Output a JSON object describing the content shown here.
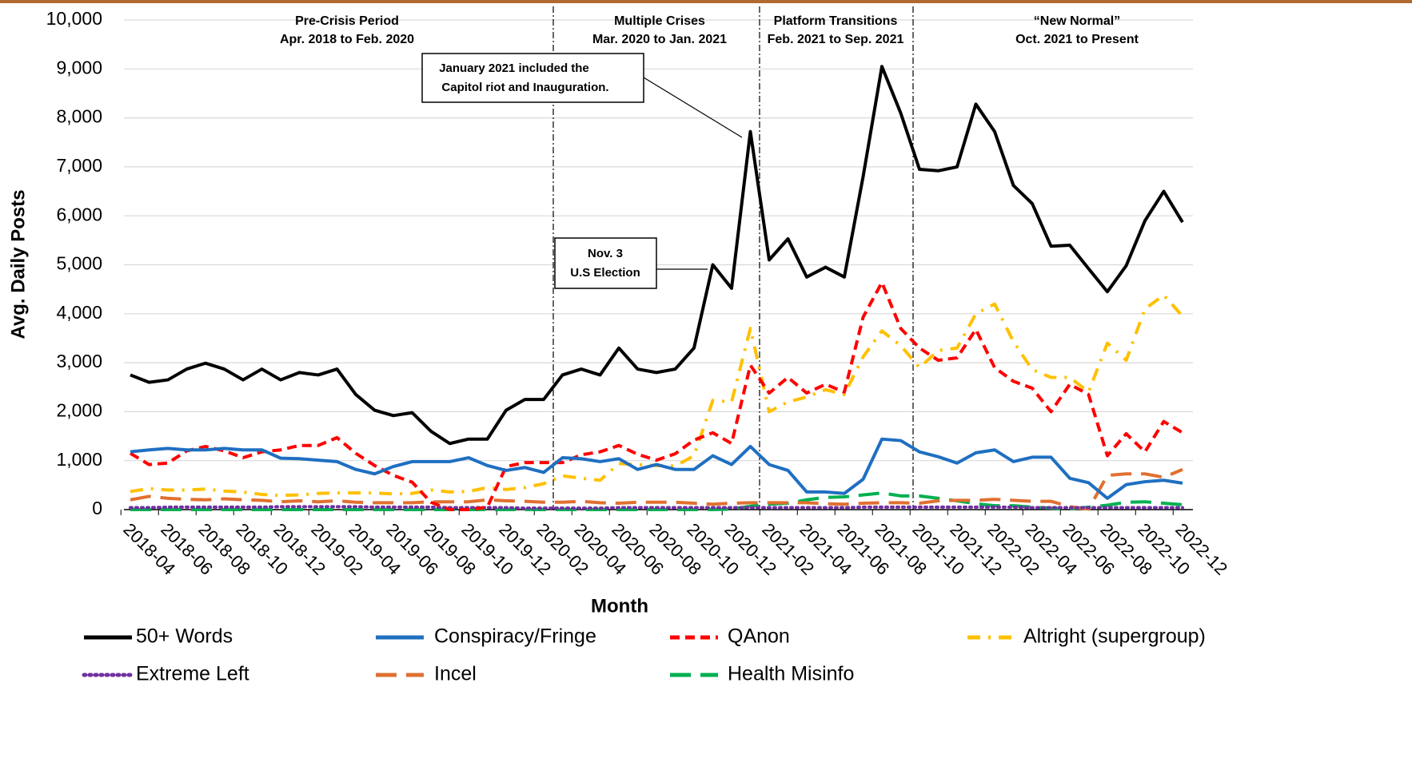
{
  "chart_data": {
    "type": "line",
    "y_label": "Avg. Daily Posts",
    "x_label": "Month",
    "categories": [
      "2018-04",
      null,
      "2018-06",
      null,
      "2018-08",
      null,
      "2018-10",
      null,
      "2018-12",
      null,
      "2019-02",
      null,
      "2019-04",
      null,
      "2019-06",
      null,
      "2019-08",
      null,
      "2019-10",
      null,
      "2019-12",
      null,
      "2020-02",
      null,
      "2020-04",
      null,
      "2020-06",
      null,
      "2020-08",
      null,
      "2020-10",
      null,
      "2020-12",
      null,
      "2021-02",
      null,
      "2021-04",
      null,
      "2021-06",
      null,
      "2021-08",
      null,
      "2021-10",
      null,
      "2021-12",
      null,
      "2022-02",
      null,
      "2022-04",
      null,
      "2022-06",
      null,
      "2022-08",
      null,
      "2022-10",
      null,
      "2022-12"
    ],
    "ylim": [
      0,
      10000
    ],
    "yticks": [
      0,
      {
        "value": 1000,
        "label": "1,000"
      },
      {
        "value": 2000,
        "label": "2,000"
      },
      {
        "value": 3000,
        "label": "3,000"
      },
      {
        "value": 4000,
        "label": "4,000"
      },
      {
        "value": 5000,
        "label": "5,000"
      },
      {
        "value": 6000,
        "label": "6,000"
      },
      {
        "value": 7000,
        "label": "7,000"
      },
      {
        "value": 8000,
        "label": "8,000"
      },
      {
        "value": 9000,
        "label": "9,000"
      },
      {
        "value": 10000,
        "label": "10,000"
      }
    ],
    "grid": true,
    "legend": "bottom",
    "periods": [
      {
        "title": "Pre-Crisis Period",
        "range": "Apr. 2018 to Feb. 2020"
      },
      {
        "title": "Multiple Crises",
        "range": "Mar. 2020 to Jan. 2021"
      },
      {
        "title": "Platform Transitions",
        "range": "Feb. 2021 to Sep. 2021"
      },
      {
        "title": "“New Normal”",
        "range": "Oct. 2021 to Present"
      }
    ],
    "notes": [
      [
        "January 2021 included the",
        "Capitol  riot and Inauguration."
      ],
      [
        "Nov. 3",
        "U.S Election"
      ]
    ],
    "series": [
      {
        "name": "50+ Words",
        "color": "#000000",
        "style": "solid",
        "values": [
          2750,
          2600,
          2650,
          2870,
          2990,
          2870,
          2650,
          2870,
          2650,
          2800,
          2750,
          2870,
          2350,
          2030,
          1920,
          1980,
          1600,
          1350,
          1440,
          1440,
          2030,
          2250,
          2250,
          2750,
          2870,
          2750,
          3300,
          2870,
          2800,
          2870,
          3300,
          5000,
          4520,
          7720,
          5100,
          5530,
          4750,
          4950,
          4750,
          6800,
          9050,
          8100,
          6950,
          6920,
          7000,
          8280,
          7720,
          6620,
          6250,
          5380,
          5400,
          4920,
          4450,
          4980,
          5900,
          6500,
          5870
        ]
      },
      {
        "name": "Conspiracy/Fringe",
        "color": "#1f6fc1",
        "style": "solid",
        "values": [
          1180,
          1220,
          1250,
          1220,
          1220,
          1250,
          1220,
          1220,
          1050,
          1040,
          1010,
          980,
          820,
          730,
          880,
          980,
          980,
          980,
          1060,
          900,
          800,
          860,
          760,
          1060,
          1040,
          980,
          1040,
          820,
          920,
          820,
          820,
          1100,
          920,
          1290,
          920,
          800,
          360,
          360,
          330,
          620,
          1440,
          1410,
          1180,
          1080,
          950,
          1160,
          1220,
          980,
          1070,
          1070,
          640,
          550,
          230,
          510,
          570,
          600,
          540
        ]
      },
      {
        "name": "QAnon",
        "color": "#ff0000",
        "style": "dashed",
        "values": [
          1150,
          920,
          950,
          1200,
          1290,
          1200,
          1060,
          1180,
          1220,
          1310,
          1310,
          1470,
          1150,
          900,
          700,
          560,
          150,
          0,
          0,
          50,
          880,
          960,
          960,
          960,
          1120,
          1180,
          1310,
          1130,
          1010,
          1140,
          1420,
          1570,
          1350,
          2950,
          2380,
          2700,
          2380,
          2560,
          2400,
          3930,
          4640,
          3700,
          3300,
          3050,
          3100,
          3680,
          2900,
          2620,
          2480,
          2000,
          2560,
          2350,
          1100,
          1550,
          1180,
          1800,
          1570
        ]
      },
      {
        "name": "Altright (supergroup)",
        "color": "#ffc000",
        "style": "dashdot",
        "values": [
          370,
          430,
          400,
          400,
          420,
          380,
          360,
          310,
          290,
          300,
          330,
          340,
          340,
          340,
          320,
          330,
          400,
          360,
          370,
          450,
          410,
          450,
          530,
          690,
          640,
          600,
          940,
          920,
          900,
          890,
          1100,
          2230,
          2200,
          3700,
          2000,
          2200,
          2300,
          2450,
          2350,
          3120,
          3650,
          3350,
          2900,
          3250,
          3300,
          4000,
          4200,
          3430,
          2860,
          2700,
          2700,
          2400,
          3400,
          3050,
          4100,
          4380,
          3950
        ]
      },
      {
        "name": "Extreme Left",
        "color": "#7030a0",
        "style": "dotted",
        "values": [
          40,
          40,
          50,
          50,
          50,
          50,
          50,
          50,
          60,
          60,
          60,
          60,
          60,
          50,
          50,
          50,
          50,
          40,
          40,
          40,
          40,
          30,
          30,
          30,
          30,
          30,
          40,
          40,
          40,
          40,
          40,
          40,
          40,
          40,
          40,
          40,
          40,
          40,
          40,
          50,
          50,
          50,
          50,
          50,
          50,
          50,
          50,
          50,
          40,
          40,
          40,
          40,
          40,
          40,
          40,
          40,
          40
        ]
      },
      {
        "name": "Incel",
        "color": "#e07030",
        "style": "longdash",
        "values": [
          200,
          270,
          230,
          210,
          200,
          220,
          200,
          190,
          160,
          180,
          160,
          180,
          150,
          140,
          140,
          140,
          160,
          160,
          160,
          200,
          180,
          170,
          150,
          150,
          170,
          140,
          130,
          150,
          150,
          150,
          130,
          110,
          130,
          140,
          140,
          140,
          140,
          120,
          110,
          130,
          140,
          140,
          130,
          180,
          190,
          190,
          210,
          190,
          170,
          170,
          60,
          10,
          700,
          730,
          730,
          660,
          820
        ]
      },
      {
        "name": "Health Misinfo",
        "color": "#00b050",
        "style": "longdash",
        "values": [
          0,
          0,
          0,
          0,
          0,
          0,
          0,
          0,
          0,
          0,
          0,
          0,
          0,
          0,
          0,
          0,
          0,
          0,
          0,
          0,
          0,
          0,
          0,
          0,
          0,
          0,
          0,
          0,
          0,
          0,
          0,
          0,
          10,
          70,
          110,
          130,
          200,
          250,
          260,
          300,
          340,
          280,
          280,
          230,
          180,
          120,
          80,
          80,
          50,
          30,
          20,
          50,
          90,
          150,
          160,
          130,
          100
        ]
      }
    ]
  }
}
